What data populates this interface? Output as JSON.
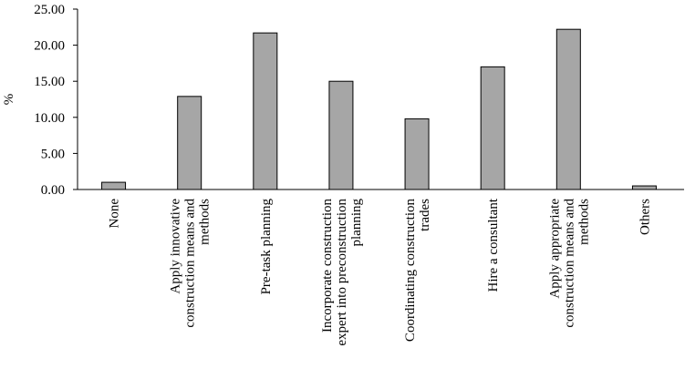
{
  "chart_data": {
    "type": "bar",
    "ylabel": "%",
    "categories": [
      "None",
      "Apply innovative construction means and methods",
      "Pre-task planning",
      "Incorporate construction expert into preconstruction planning",
      "Coordinating construction trades",
      "Hire a consultant",
      "Apply appropriate construction means and methods",
      "Others"
    ],
    "values": [
      1.0,
      12.9,
      21.7,
      15.0,
      9.8,
      17.0,
      22.2,
      0.5
    ],
    "color": "#a6a6a6",
    "ylim": [
      0,
      25
    ],
    "yticks": [
      {
        "value": 0,
        "label": "0.00"
      },
      {
        "value": 5,
        "label": "5.00"
      },
      {
        "value": 10,
        "label": "10.00"
      },
      {
        "value": 15,
        "label": "15.00"
      },
      {
        "value": 20,
        "label": "20.00"
      },
      {
        "value": 25,
        "label": "25.00"
      }
    ],
    "grid": false
  }
}
